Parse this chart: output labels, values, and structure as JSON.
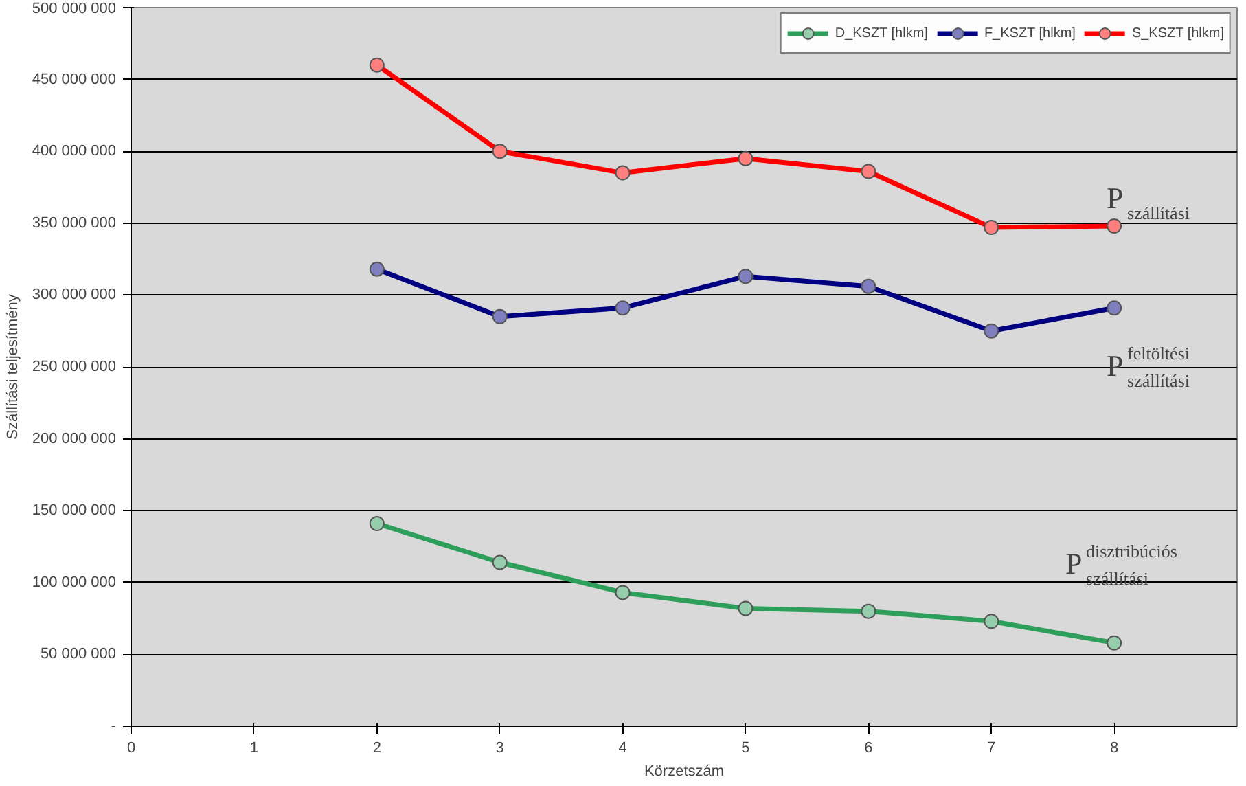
{
  "chart_data": {
    "type": "line",
    "xlabel": "Körzetszám",
    "ylabel": "Szállítási teljesítmény",
    "x": [
      2,
      3,
      4,
      5,
      6,
      7,
      8
    ],
    "series": [
      {
        "name": "D_KSZT [hlkm]",
        "color": "#2e9e5b",
        "values": [
          141000000,
          114000000,
          93000000,
          82000000,
          80000000,
          73000000,
          58000000
        ]
      },
      {
        "name": "F_KSZT [hlkm]",
        "color": "#000080",
        "values": [
          318000000,
          285000000,
          291000000,
          313000000,
          306000000,
          275000000,
          291000000
        ]
      },
      {
        "name": "S_KSZT [hlkm]",
        "color": "#ff0000",
        "values": [
          460000000,
          400000000,
          385000000,
          395000000,
          386000000,
          347000000,
          348000000
        ]
      }
    ],
    "xlim": [
      0,
      9
    ],
    "xticks": [
      0,
      1,
      2,
      3,
      4,
      5,
      6,
      7,
      8
    ],
    "ylim": [
      0,
      500000000
    ],
    "yticks": [
      {
        "value": 0,
        "label": "-"
      },
      {
        "value": 50000000,
        "label": "50 000 000"
      },
      {
        "value": 100000000,
        "label": "100 000 000"
      },
      {
        "value": 150000000,
        "label": "150 000 000"
      },
      {
        "value": 200000000,
        "label": "200 000 000"
      },
      {
        "value": 250000000,
        "label": "250 000 000"
      },
      {
        "value": 300000000,
        "label": "300 000 000"
      },
      {
        "value": 350000000,
        "label": "350 000 000"
      },
      {
        "value": 400000000,
        "label": "400 000 000"
      },
      {
        "value": 450000000,
        "label": "450 000 000"
      },
      {
        "value": 500000000,
        "label": "500 000 000"
      }
    ],
    "grid": "y",
    "legend": "top right",
    "marker": "circle",
    "line_style": "solid",
    "annotations": [
      "P$_{szállítási}$",
      "P$^{feltöltési}$$_{szállítási}$",
      "P$^{disztribúciós}$$_{szállítási}$"
    ]
  }
}
